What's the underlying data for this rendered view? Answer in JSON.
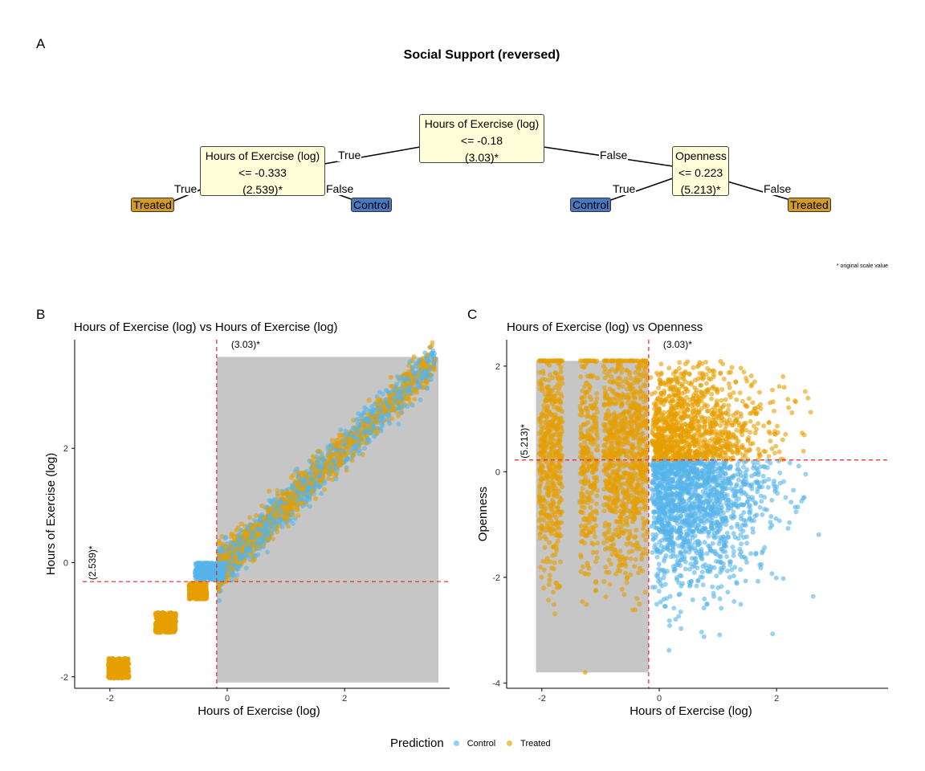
{
  "panel_labels": {
    "a": "A",
    "b": "B",
    "c": "C"
  },
  "tree": {
    "title": "Social Support (reversed)",
    "root": {
      "feature": "Hours of Exercise (log)",
      "rule": "<= -0.18",
      "value": "(3.03)*"
    },
    "left": {
      "feature": "Hours of Exercise (log)",
      "rule": "<= -0.333",
      "value": "(2.539)*"
    },
    "right": {
      "feature": "Openness",
      "rule": "<= 0.223",
      "value": "(5.213)*"
    },
    "leaves": {
      "ll": "Treated",
      "lr": "Control",
      "rl": "Control",
      "rr": "Treated"
    },
    "edges": {
      "root_left": "True",
      "root_right": "False",
      "left_true": "True",
      "left_false": "False",
      "right_true": "True",
      "right_false": "False"
    },
    "footnote": "* original scale value"
  },
  "colors": {
    "control": "#56b4e9",
    "treated": "#e69f00",
    "shade": "#c6c6c6",
    "split_line": "#e8222a"
  },
  "legend": {
    "title": "Prediction",
    "control": "Control",
    "treated": "Treated"
  },
  "chart_data": [
    {
      "type": "scatter",
      "title": "Hours of Exercise (log) vs Hours of Exercise (log)",
      "xlabel": "Hours of Exercise (log)",
      "ylabel": "Hours of Exercise (log)",
      "xlim": [
        -2.6,
        3.9
      ],
      "ylim": [
        -2.2,
        3.9
      ],
      "xticks": [
        -2,
        0,
        2
      ],
      "yticks": [
        -2,
        0,
        2
      ],
      "vline": -0.18,
      "vline_label": "(3.03)*",
      "hline": -0.333,
      "hline_label": "(2.539)*",
      "shaded_region": {
        "x": [
          -0.18,
          3.6
        ],
        "y": [
          -2.1,
          3.6
        ]
      },
      "series": [
        {
          "name": "Control"
        },
        {
          "name": "Treated"
        }
      ]
    },
    {
      "type": "scatter",
      "title": "Hours of Exercise (log) vs Openness",
      "xlabel": "Hours of Exercise (log)",
      "ylabel": "Openness",
      "xlim": [
        -2.6,
        3.9
      ],
      "ylim": [
        -4.1,
        2.5
      ],
      "xticks": [
        -2,
        0,
        2
      ],
      "yticks": [
        -4,
        -2,
        0,
        2
      ],
      "vline": -0.18,
      "vline_label": "(3.03)*",
      "hline": 0.223,
      "hline_label": "(5.213)*",
      "shaded_region": {
        "x": [
          -2.1,
          -0.18
        ],
        "y": [
          -3.8,
          2.1
        ]
      },
      "series": [
        {
          "name": "Control"
        },
        {
          "name": "Treated"
        }
      ]
    }
  ]
}
